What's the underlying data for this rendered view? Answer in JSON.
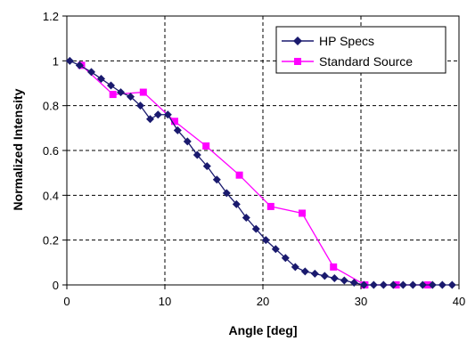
{
  "chart_data": {
    "type": "line",
    "title": "",
    "xlabel": "Angle [deg]",
    "ylabel": "Normalized Intensity",
    "xlim": [
      0,
      40
    ],
    "ylim": [
      0,
      1.2
    ],
    "x_ticks": [
      "0",
      "10",
      "20",
      "30",
      "40"
    ],
    "y_ticks": [
      "0",
      "0.2",
      "0.4",
      "0.6",
      "0.8",
      "1",
      "1.2"
    ],
    "grid": "dashed",
    "legend_position": "top-right",
    "series": [
      {
        "name": "HP Specs",
        "color": "#1a1a6e",
        "marker": "diamond",
        "x": [
          0.3,
          1.3,
          2.5,
          3.5,
          4.5,
          5.5,
          6.5,
          7.5,
          8.5,
          9.3,
          10.3,
          11.3,
          12.3,
          13.3,
          14.3,
          15.3,
          16.3,
          17.3,
          18.3,
          19.3,
          20.3,
          21.3,
          22.3,
          23.3,
          24.3,
          25.3,
          26.3,
          27.3,
          28.3,
          29.3,
          30.3,
          31.3,
          32.3,
          33.3,
          34.3,
          35.3,
          36.3,
          37.3,
          38.3,
          39.3
        ],
        "y": [
          1.0,
          0.98,
          0.95,
          0.92,
          0.89,
          0.86,
          0.84,
          0.8,
          0.74,
          0.76,
          0.76,
          0.69,
          0.64,
          0.58,
          0.53,
          0.47,
          0.41,
          0.36,
          0.3,
          0.25,
          0.2,
          0.16,
          0.12,
          0.08,
          0.06,
          0.05,
          0.04,
          0.03,
          0.02,
          0.01,
          0.0,
          0.0,
          0.0,
          0.0,
          0.0,
          0.0,
          0.0,
          0.0,
          0.0,
          0.0
        ]
      },
      {
        "name": "Standard Source",
        "color": "#ff00ff",
        "marker": "square",
        "x": [
          1.5,
          4.7,
          7.8,
          11.0,
          14.2,
          17.6,
          20.8,
          24.0,
          27.2,
          30.4,
          33.6,
          36.8
        ],
        "y": [
          0.98,
          0.85,
          0.86,
          0.73,
          0.62,
          0.49,
          0.35,
          0.32,
          0.08,
          0.0,
          0.0,
          0.0
        ]
      }
    ]
  }
}
